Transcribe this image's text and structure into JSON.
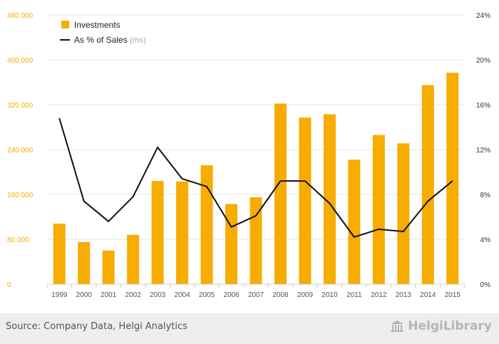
{
  "chart_data": {
    "type": "bar",
    "categories": [
      "1999",
      "2000",
      "2001",
      "2002",
      "2003",
      "2004",
      "2005",
      "2006",
      "2007",
      "2008",
      "2009",
      "2010",
      "2011",
      "2012",
      "2013",
      "2014",
      "2015"
    ],
    "series": [
      {
        "name": "Investments",
        "type": "bar",
        "axis": "left",
        "color": "#f7ac00",
        "values": [
          108000,
          75000,
          60000,
          88000,
          184000,
          183000,
          212000,
          143000,
          155000,
          322000,
          297000,
          303000,
          222000,
          266000,
          251000,
          355000,
          377000
        ]
      },
      {
        "name": "As % of Sales",
        "name_suffix": "(rhs)",
        "type": "line",
        "axis": "right",
        "color": "#111111",
        "values": [
          14.8,
          7.4,
          5.6,
          7.8,
          12.2,
          9.4,
          8.7,
          5.1,
          6.1,
          9.2,
          9.2,
          7.2,
          4.2,
          4.9,
          4.7,
          7.4,
          9.2
        ]
      }
    ],
    "y_left": {
      "ylim": [
        0,
        480000
      ],
      "ticks": [
        0,
        80000,
        160000,
        240000,
        320000,
        400000,
        480000
      ],
      "tick_labels": [
        "0",
        "80 000",
        "160 000",
        "240 000",
        "320 000",
        "400 000",
        "480 000"
      ],
      "tick_color": "#f7ac00"
    },
    "y_right": {
      "ylim": [
        0,
        24
      ],
      "ticks": [
        0,
        4,
        8,
        12,
        16,
        20,
        24
      ],
      "tick_labels": [
        "0%",
        "4%",
        "8%",
        "12%",
        "16%",
        "20%",
        "24%"
      ]
    },
    "grid": true,
    "legend": "top-left"
  },
  "footer": {
    "source": "Source: Company Data, Helgi Analytics",
    "logo_text": "HelgiLibrary"
  },
  "colors": {
    "bar": "#f7ac00",
    "line": "#111111",
    "grid": "#e6e6e6"
  },
  "icons": {
    "logo": "library-building-icon"
  }
}
